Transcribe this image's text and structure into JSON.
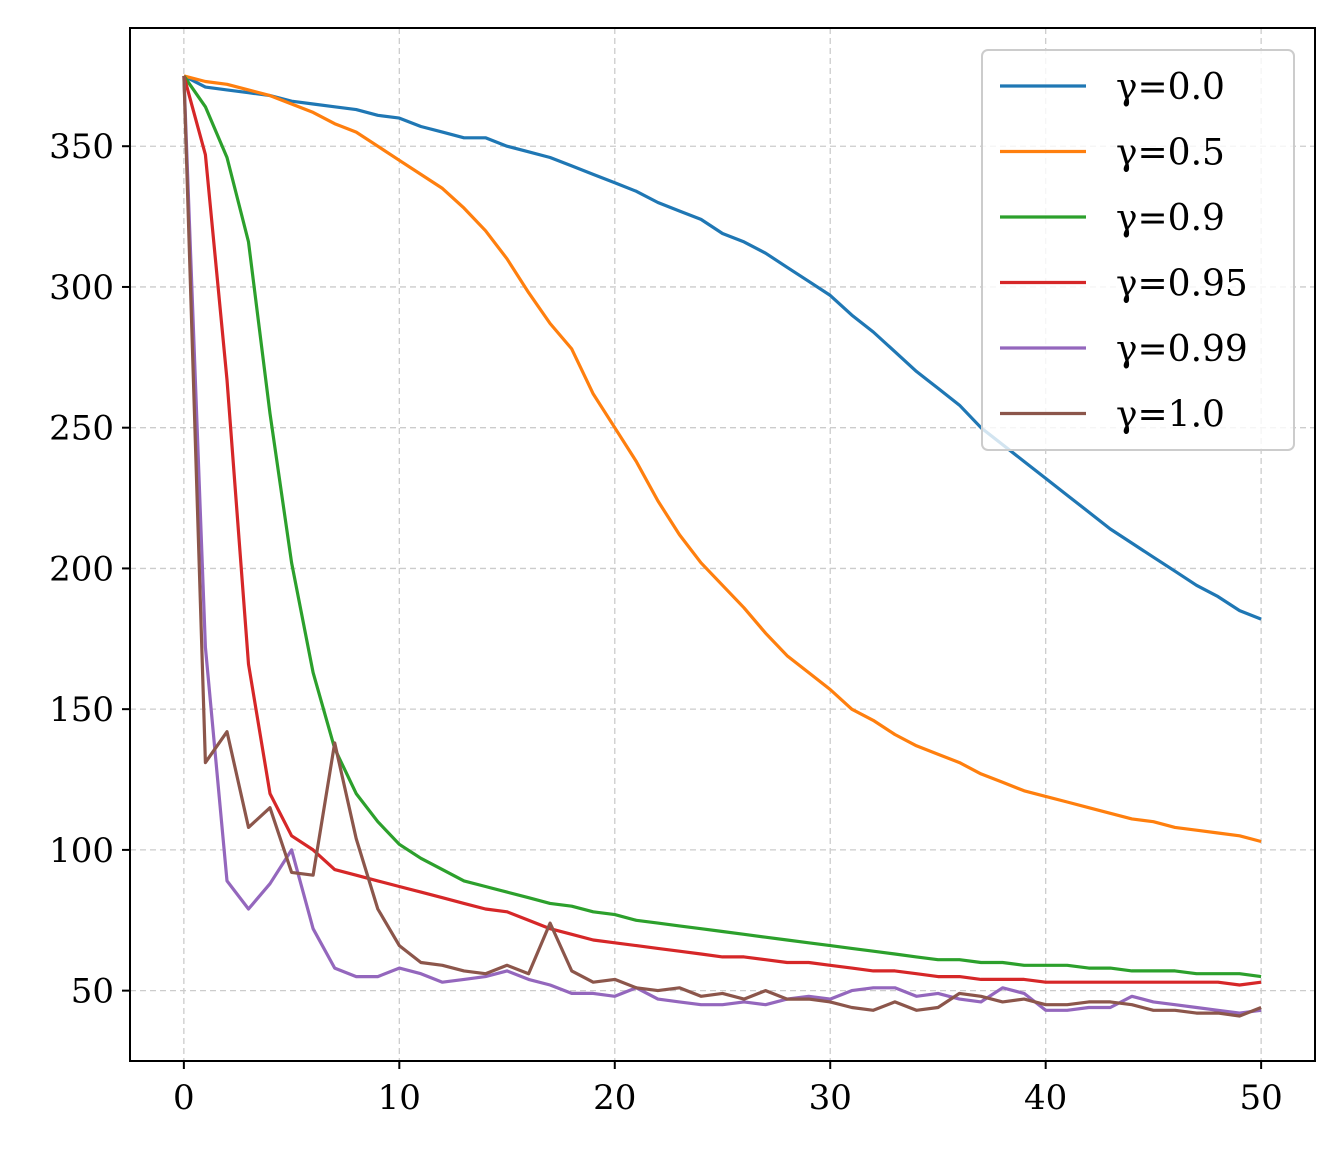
{
  "chart_data": {
    "type": "line",
    "title": "",
    "xlabel": "",
    "ylabel": "",
    "xlim": [
      -2.5,
      52.5
    ],
    "ylim": [
      25,
      392
    ],
    "xticks": [
      0,
      10,
      20,
      30,
      40,
      50
    ],
    "yticks": [
      50,
      100,
      150,
      200,
      250,
      300,
      350
    ],
    "xtick_labels": [
      "0",
      "10",
      "20",
      "30",
      "40",
      "50"
    ],
    "ytick_labels": [
      "50",
      "100",
      "150",
      "200",
      "250",
      "300",
      "350"
    ],
    "grid": true,
    "legend_position": "top-right",
    "x": [
      0,
      1,
      2,
      3,
      4,
      5,
      6,
      7,
      8,
      9,
      10,
      11,
      12,
      13,
      14,
      15,
      16,
      17,
      18,
      19,
      20,
      21,
      22,
      23,
      24,
      25,
      26,
      27,
      28,
      29,
      30,
      31,
      32,
      33,
      34,
      35,
      36,
      37,
      38,
      39,
      40,
      41,
      42,
      43,
      44,
      45,
      46,
      47,
      48,
      49,
      50
    ],
    "series": [
      {
        "name": "γ=0.0",
        "color": "#1f77b4",
        "values": [
          375,
          371,
          370,
          369,
          368,
          366,
          365,
          364,
          363,
          361,
          360,
          357,
          355,
          353,
          353,
          350,
          348,
          346,
          343,
          340,
          337,
          334,
          330,
          327,
          324,
          319,
          316,
          312,
          307,
          302,
          297,
          290,
          284,
          277,
          270,
          264,
          258,
          250,
          244,
          238,
          232,
          226,
          220,
          214,
          209,
          204,
          199,
          194,
          190,
          185,
          182
        ]
      },
      {
        "name": "γ=0.5",
        "color": "#ff7f0e",
        "values": [
          375,
          373,
          372,
          370,
          368,
          365,
          362,
          358,
          355,
          350,
          345,
          340,
          335,
          328,
          320,
          310,
          298,
          287,
          278,
          262,
          250,
          238,
          224,
          212,
          202,
          194,
          186,
          177,
          169,
          163,
          157,
          150,
          146,
          141,
          137,
          134,
          131,
          127,
          124,
          121,
          119,
          117,
          115,
          113,
          111,
          110,
          108,
          107,
          106,
          105,
          103
        ]
      },
      {
        "name": "γ=0.9",
        "color": "#2ca02c",
        "values": [
          375,
          364,
          346,
          316,
          255,
          202,
          163,
          136,
          120,
          110,
          102,
          97,
          93,
          89,
          87,
          85,
          83,
          81,
          80,
          78,
          77,
          75,
          74,
          73,
          72,
          71,
          70,
          69,
          68,
          67,
          66,
          65,
          64,
          63,
          62,
          61,
          61,
          60,
          60,
          59,
          59,
          59,
          58,
          58,
          57,
          57,
          57,
          56,
          56,
          56,
          55
        ]
      },
      {
        "name": "γ=0.95",
        "color": "#d62728",
        "values": [
          375,
          347,
          267,
          166,
          120,
          105,
          100,
          93,
          91,
          89,
          87,
          85,
          83,
          81,
          79,
          78,
          75,
          72,
          70,
          68,
          67,
          66,
          65,
          64,
          63,
          62,
          62,
          61,
          60,
          60,
          59,
          58,
          57,
          57,
          56,
          55,
          55,
          54,
          54,
          54,
          53,
          53,
          53,
          53,
          53,
          53,
          53,
          53,
          53,
          52,
          53
        ]
      },
      {
        "name": "γ=0.99",
        "color": "#9467bd",
        "values": [
          375,
          172,
          89,
          79,
          88,
          100,
          72,
          58,
          55,
          55,
          58,
          56,
          53,
          54,
          55,
          57,
          54,
          52,
          49,
          49,
          48,
          51,
          47,
          46,
          45,
          45,
          46,
          45,
          47,
          48,
          47,
          50,
          51,
          51,
          48,
          49,
          47,
          46,
          51,
          49,
          43,
          43,
          44,
          44,
          48,
          46,
          45,
          44,
          43,
          42,
          43
        ]
      },
      {
        "name": "γ=1.0",
        "color": "#8c564b",
        "values": [
          375,
          131,
          142,
          108,
          115,
          92,
          91,
          138,
          104,
          79,
          66,
          60,
          59,
          57,
          56,
          59,
          56,
          74,
          57,
          53,
          54,
          51,
          50,
          51,
          48,
          49,
          47,
          50,
          47,
          47,
          46,
          44,
          43,
          46,
          43,
          44,
          49,
          48,
          46,
          47,
          45,
          45,
          46,
          46,
          45,
          43,
          43,
          42,
          42,
          41,
          44
        ]
      }
    ]
  }
}
